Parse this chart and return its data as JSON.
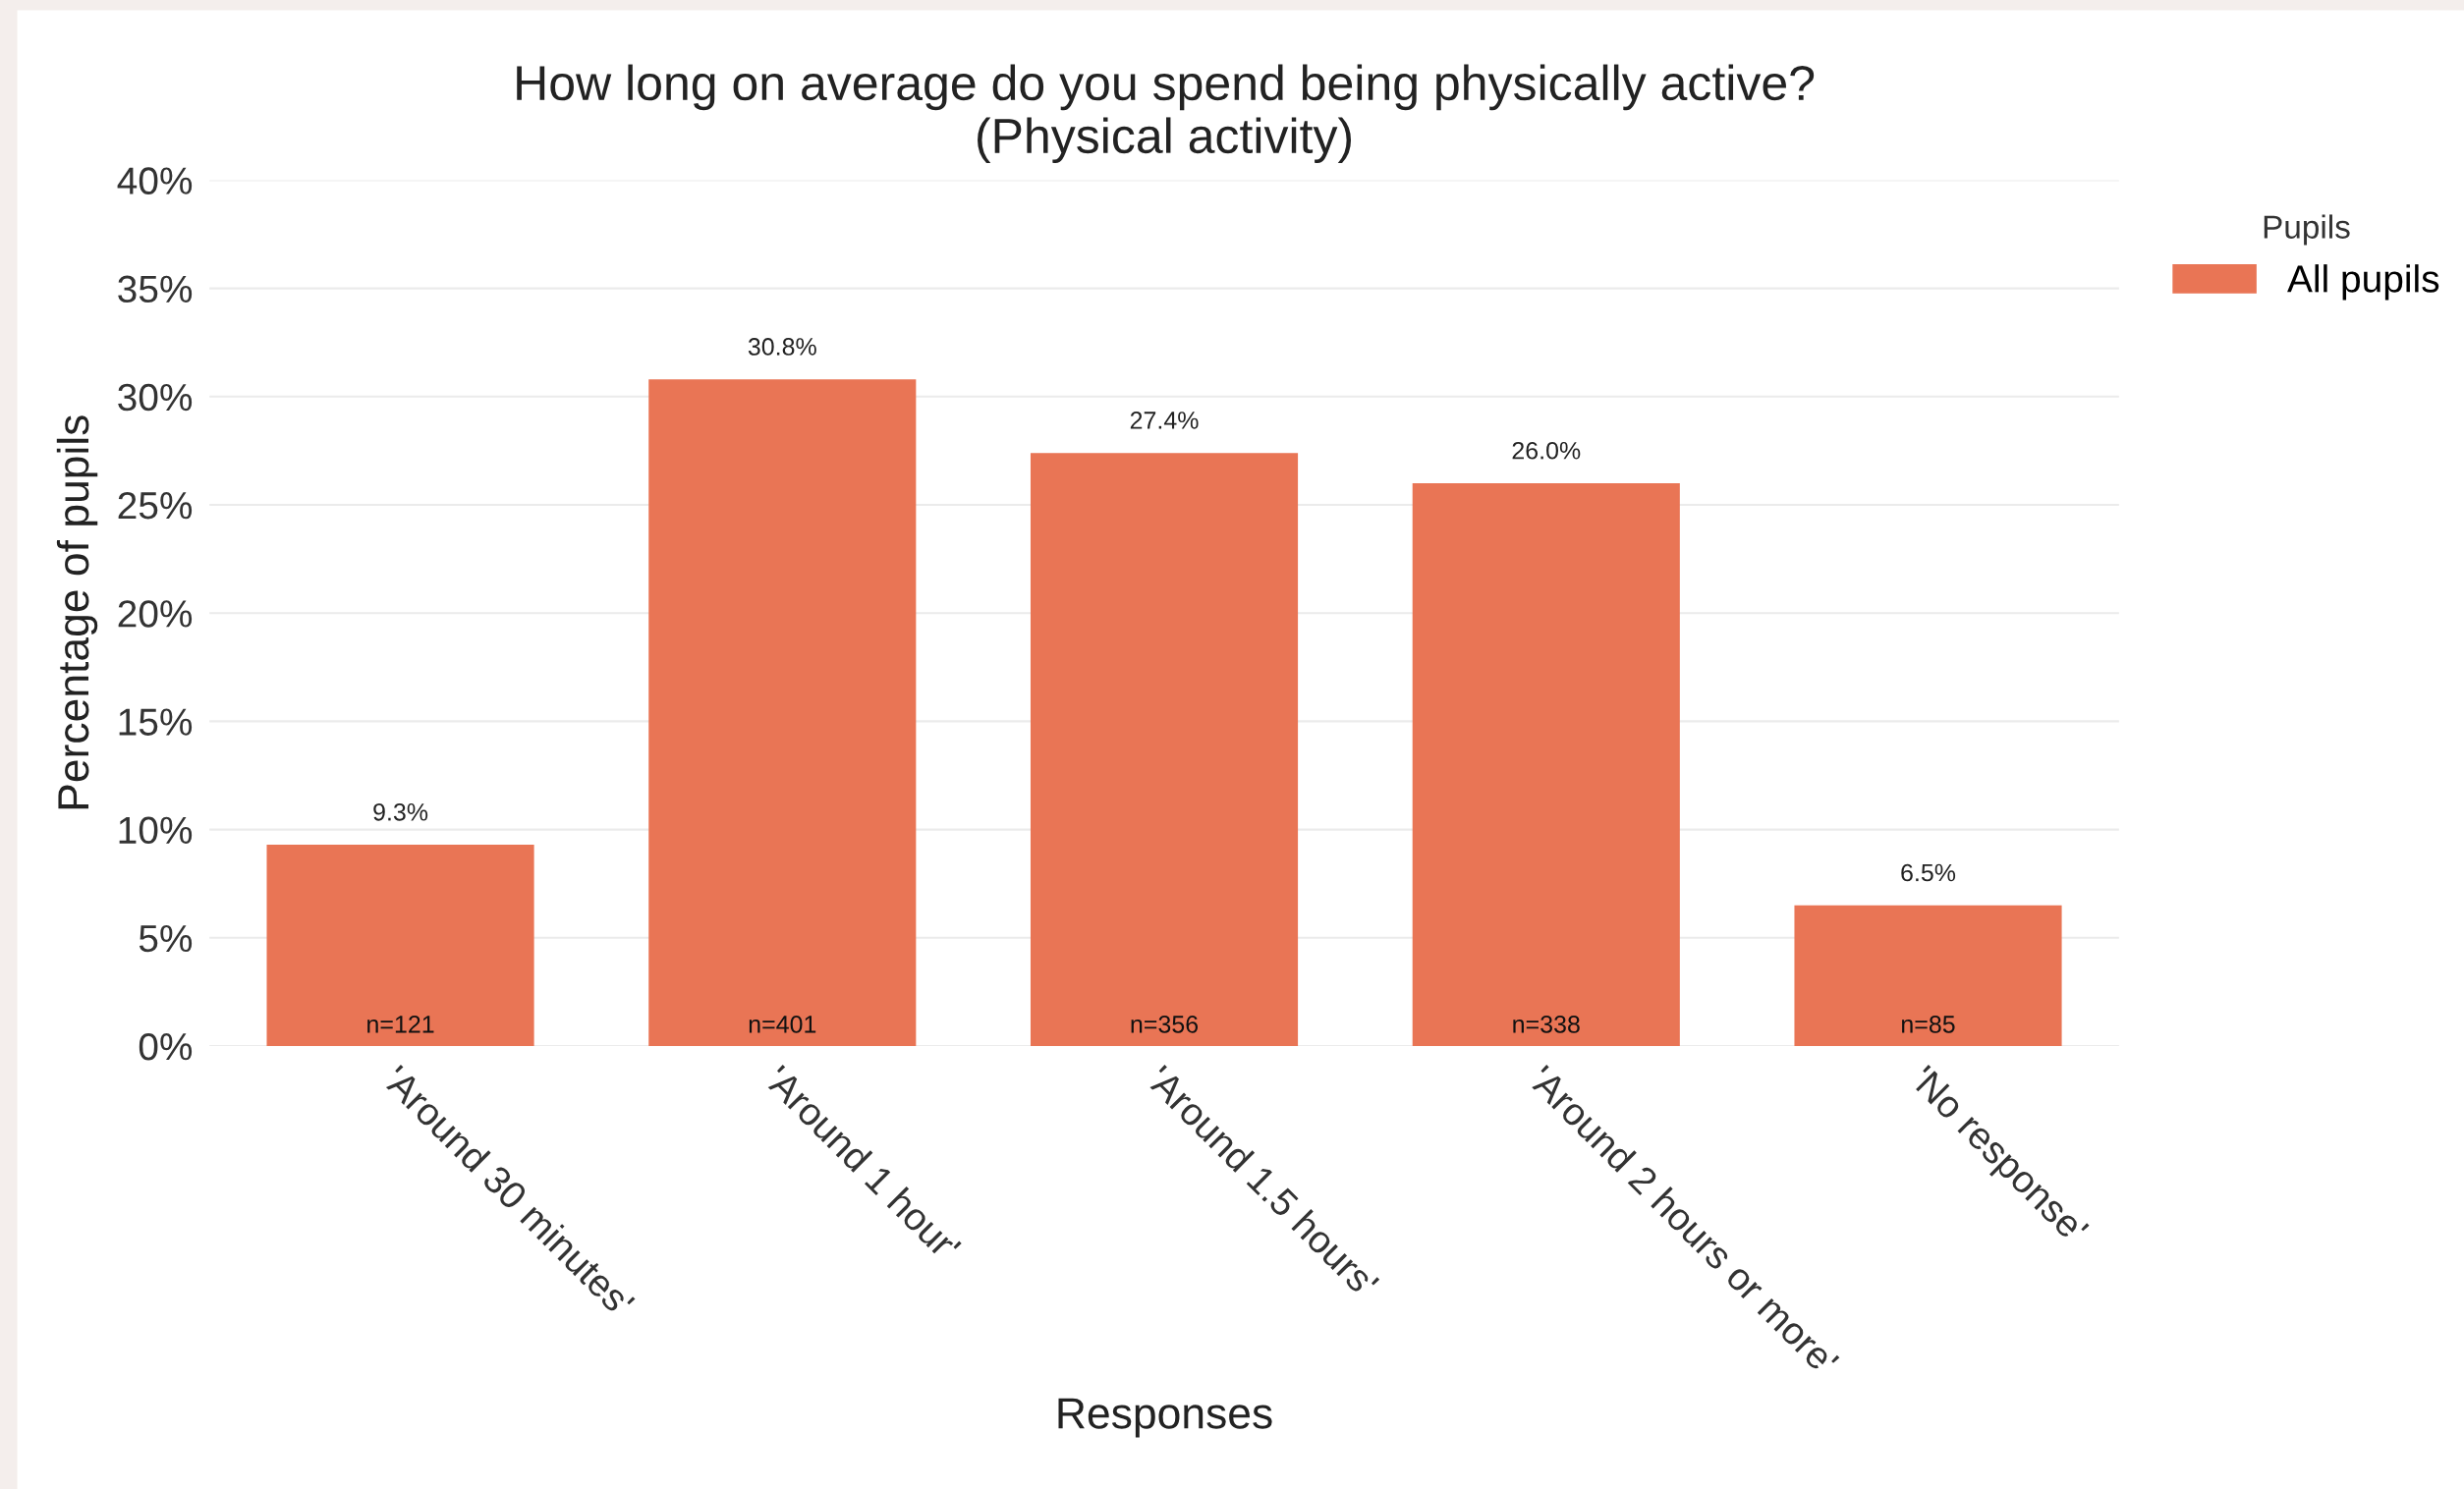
{
  "chart_data": {
    "type": "bar",
    "title": "How long on average do you spend being physically active?\n(Physical activity)",
    "xlabel": "Responses",
    "ylabel": "Percentage of pupils",
    "legend_title": "Pupils",
    "categories": [
      "'Around 30 minutes'",
      "'Around 1 hour'",
      "'Around 1.5 hours'",
      "'Around 2 hours or more'",
      "'No response'"
    ],
    "series": [
      {
        "name": "All pupils",
        "color": "#e97555",
        "values": [
          9.3,
          30.8,
          27.4,
          26.0,
          6.5
        ],
        "value_labels": [
          "9.3%",
          "30.8%",
          "27.4%",
          "26.0%",
          "6.5%"
        ]
      }
    ],
    "ylim": [
      0,
      40
    ],
    "yticks": [
      {
        "value": 0,
        "label": "0%"
      },
      {
        "value": 5,
        "label": "5%"
      },
      {
        "value": 10,
        "label": "10%"
      },
      {
        "value": 15,
        "label": "15%"
      },
      {
        "value": 20,
        "label": "20%"
      },
      {
        "value": 25,
        "label": "25%"
      },
      {
        "value": 30,
        "label": "30%"
      },
      {
        "value": 35,
        "label": "35%"
      },
      {
        "value": 40,
        "label": "40%"
      }
    ],
    "grid": "y",
    "legend": "top right",
    "annotations": [
      {
        "text": "n=121",
        "x": "'Around 30 minutes'",
        "y": 0
      },
      {
        "text": "n=401",
        "x": "'Around 1 hour'",
        "y": 0
      },
      {
        "text": "n=356",
        "x": "'Around 1.5 hours'",
        "y": 0
      },
      {
        "text": "n=338",
        "x": "'Around 2 hours or more'",
        "y": 0
      },
      {
        "text": "n=85",
        "x": "'No response'",
        "y": 0
      }
    ]
  }
}
